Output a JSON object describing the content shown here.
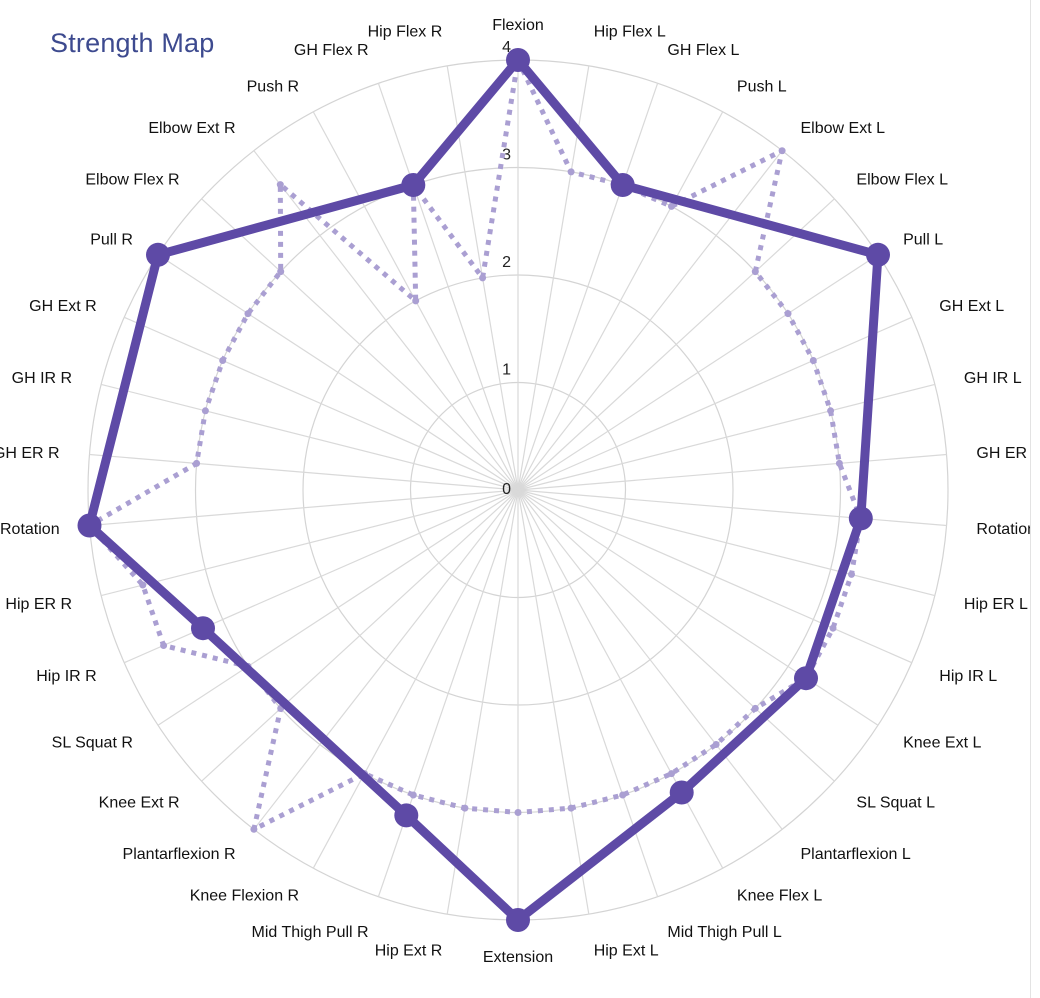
{
  "title": "Strength Map",
  "colors": {
    "ring": "#d4d4d4",
    "spoke": "#d9d9d9",
    "series_solid": "#5e4aa6",
    "series_dotted": "#aa9fd2"
  },
  "chart_data": {
    "type": "radar",
    "categories": [
      "Flexion",
      "Hip Flex L",
      "GH Flex L",
      "Push L",
      "Elbow Ext L",
      "Elbow Flex L",
      "Pull L",
      "GH Ext L",
      "GH IR L",
      "GH ER L",
      "Rotation L",
      "Hip ER L",
      "Hip IR L",
      "Knee Ext L",
      "SL Squat L",
      "Plantarflexion L",
      "Knee Flex L",
      "Mid Thigh Pull L",
      "Hip Ext L",
      "Extension",
      "Hip Ext R",
      "Mid Thigh Pull R",
      "Knee Flexion R",
      "Plantarflexion R",
      "Knee Ext R",
      "SL Squat R",
      "Hip IR R",
      "Hip ER R",
      "Rotation",
      "GH ER R",
      "GH IR R",
      "GH Ext R",
      "Pull R",
      "Elbow Flex R",
      "Elbow Ext R",
      "Push R",
      "GH Flex R",
      "Hip Flex R"
    ],
    "rlim": [
      0,
      4
    ],
    "ticks": [
      "0",
      "1",
      "2",
      "3",
      "4"
    ],
    "series": [
      {
        "style": "solid",
        "values": [
          4,
          null,
          3,
          null,
          null,
          null,
          4,
          null,
          null,
          null,
          3.2,
          null,
          null,
          3.2,
          null,
          null,
          3.2,
          null,
          null,
          4,
          null,
          3.2,
          null,
          null,
          null,
          null,
          3.2,
          null,
          4,
          null,
          null,
          null,
          4,
          null,
          null,
          null,
          3,
          null
        ]
      },
      {
        "style": "dotted",
        "values": [
          4,
          3,
          3,
          3,
          4,
          3,
          3,
          3,
          3,
          3,
          3.2,
          3.2,
          3.2,
          3.2,
          3,
          3,
          3,
          3,
          3,
          3,
          3,
          3,
          3,
          4,
          3,
          3,
          3.6,
          3.6,
          4,
          3,
          3,
          3,
          3,
          3,
          3.6,
          2,
          3,
          2
        ]
      }
    ]
  }
}
